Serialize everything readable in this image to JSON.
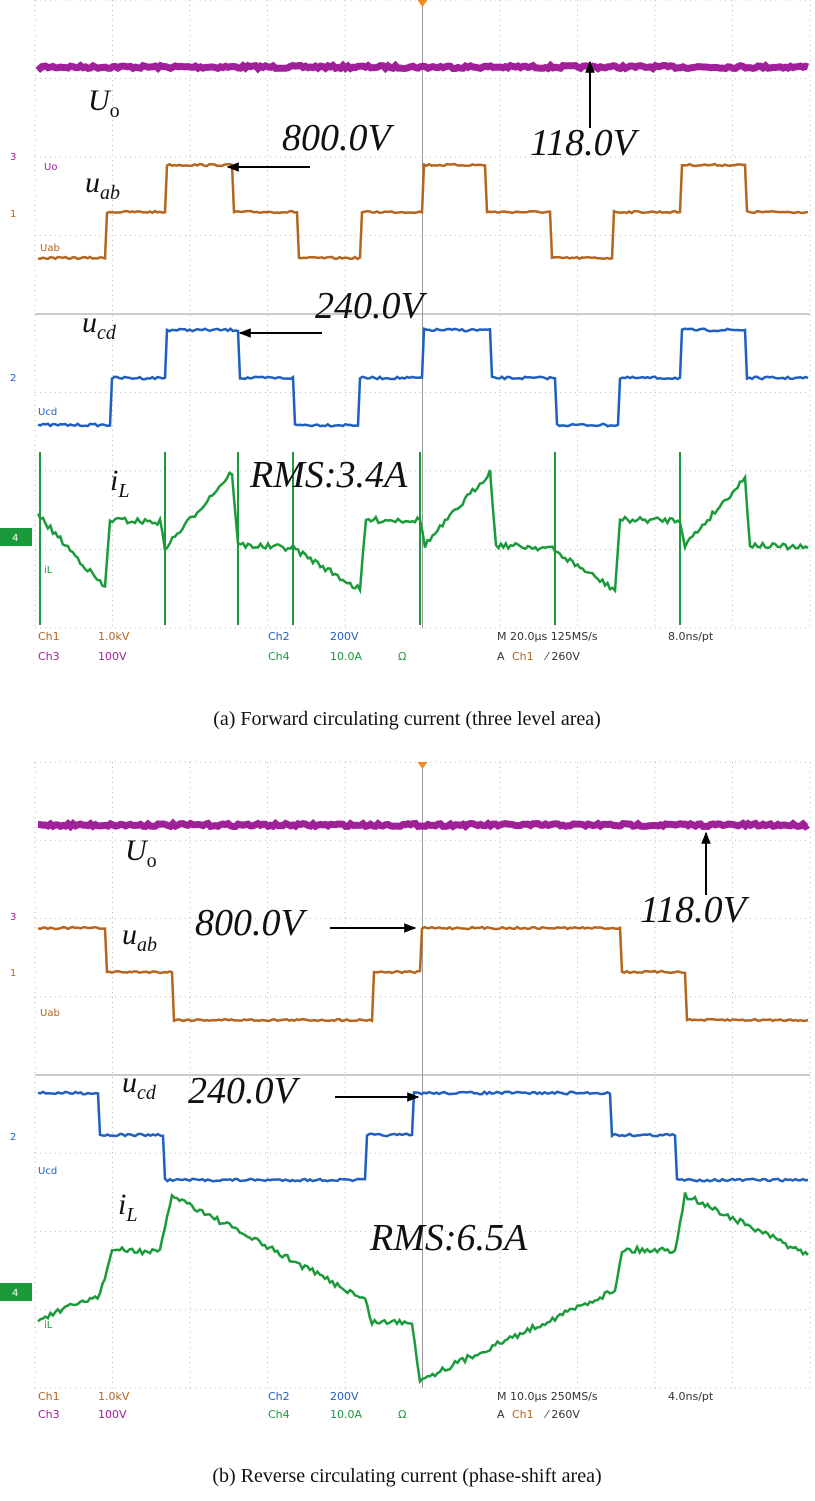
{
  "panels": [
    {
      "labels": {
        "uo": [
          "U",
          "o"
        ],
        "uab": [
          "u",
          "ab"
        ],
        "ucd": [
          "u",
          "cd"
        ],
        "il": [
          "i",
          "L"
        ]
      },
      "annotations": {
        "uab_peak": "800.0V",
        "uo_value": "118.0V",
        "ucd_peak": "240.0V",
        "rms": "RMS:3.4A"
      },
      "markers": {
        "ch3": "3",
        "ch1": "1",
        "ch2": "2",
        "ch4": "4",
        "uo": "Uo",
        "uab": "Uab",
        "ucd": "Ucd",
        "il": "iL"
      },
      "readout": {
        "ch1": "Ch1",
        "ch1_scale": "1.0kV",
        "ch3": "Ch3",
        "ch3_scale": "100V",
        "ch2": "Ch2",
        "ch2_scale": "200V",
        "ch4": "Ch4",
        "ch4_scale": "10.0A",
        "ohm": "Ω",
        "timebase": "M 20.0µs 125MS/s",
        "resolution": "8.0ns/pt",
        "trigger": "A",
        "trigger_ch": "Ch1",
        "trigger_level": "⁄ 260V"
      },
      "caption": "(a) Forward circulating current (three level area)"
    },
    {
      "labels": {
        "uo": [
          "U",
          "o"
        ],
        "uab": [
          "u",
          "ab"
        ],
        "ucd": [
          "u",
          "cd"
        ],
        "il": [
          "i",
          "L"
        ]
      },
      "annotations": {
        "uab_peak": "800.0V",
        "uo_value": "118.0V",
        "ucd_peak": "240.0V",
        "rms": "RMS:6.5A"
      },
      "markers": {
        "ch3": "3",
        "ch1": "1",
        "ch2": "2",
        "ch4": "4",
        "uab": "Uab",
        "ucd": "Ucd",
        "il": "iL"
      },
      "readout": {
        "ch1": "Ch1",
        "ch1_scale": "1.0kV",
        "ch3": "Ch3",
        "ch3_scale": "100V",
        "ch2": "Ch2",
        "ch2_scale": "200V",
        "ch4": "Ch4",
        "ch4_scale": "10.0A",
        "ohm": "Ω",
        "timebase": "M 10.0µs 250MS/s",
        "resolution": "4.0ns/pt",
        "trigger": "A",
        "trigger_ch": "Ch1",
        "trigger_level": "⁄ 260V"
      },
      "caption": "(b) Reverse circulating current (phase-shift area)"
    }
  ]
}
